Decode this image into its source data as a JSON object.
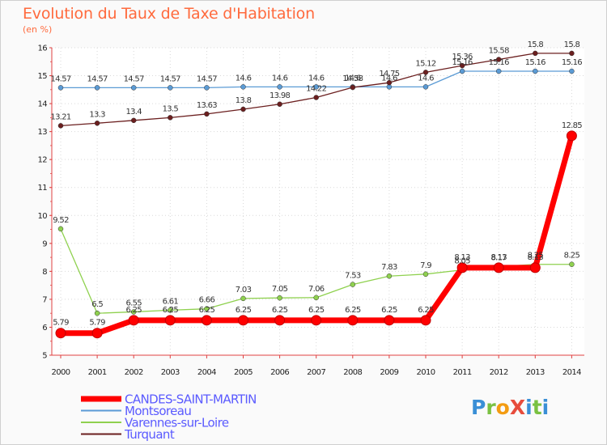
{
  "header": {
    "title": "Evolution du Taux de Taxe d'Habitation",
    "subtitle": "(en %)"
  },
  "logo": {
    "text": "ProXiti",
    "letters": [
      "P",
      "r",
      "o",
      "X",
      "i",
      "t",
      "i"
    ],
    "colors": [
      "#3a8fd6",
      "#7ac142",
      "#f39c12",
      "#e74c3c",
      "#3a8fd6",
      "#7ac142",
      "#3a8fd6"
    ]
  },
  "chart_data": {
    "type": "line",
    "title": "Evolution du Taux de Taxe d'Habitation",
    "ylabel": "(en %)",
    "xlabel": "",
    "x": [
      "2000",
      "2001",
      "2002",
      "2003",
      "2004",
      "2005",
      "2006",
      "2007",
      "2008",
      "2009",
      "2010",
      "2011",
      "2012",
      "2013",
      "2014"
    ],
    "ylim": [
      5,
      16
    ],
    "yticks": [
      "5",
      "6",
      "7",
      "8",
      "9",
      "10",
      "11",
      "12",
      "13",
      "14",
      "15",
      "16"
    ],
    "grid": true,
    "legend_position": "bottom-left",
    "series": [
      {
        "name": "CANDES-SAINT-MARTIN",
        "color": "#ff0000",
        "values": [
          5.79,
          5.79,
          6.25,
          6.25,
          6.25,
          6.25,
          6.25,
          6.25,
          6.25,
          6.25,
          6.25,
          8.13,
          8.13,
          8.13,
          12.85
        ],
        "labels": [
          "5.79",
          "5.79",
          "6.25",
          "6.25",
          "6.25",
          "6.25",
          "6.25",
          "6.25",
          "6.25",
          "6.25",
          "6.25",
          "8.13",
          "8.13",
          "8.13",
          "12.85"
        ]
      },
      {
        "name": "Montsoreau",
        "color": "#5b9bd5",
        "values": [
          14.57,
          14.57,
          14.57,
          14.57,
          14.57,
          14.6,
          14.6,
          14.6,
          14.6,
          14.6,
          14.6,
          15.16,
          15.16,
          15.16,
          15.16
        ],
        "labels": [
          "14.57",
          "14.57",
          "14.57",
          "14.57",
          "14.57",
          "14.6",
          "14.6",
          "14.6",
          "14.6",
          "14.6",
          "14.6",
          "15.16",
          "15.16",
          "15.16",
          "15.16"
        ]
      },
      {
        "name": "Varennes-sur-Loire",
        "color": "#8fd14f",
        "values": [
          9.52,
          6.5,
          6.55,
          6.61,
          6.66,
          7.03,
          7.05,
          7.06,
          7.53,
          7.83,
          7.9,
          8.05,
          8.17,
          8.25,
          8.25
        ],
        "labels": [
          "9.52",
          "6.5",
          "6.55",
          "6.61",
          "6.66",
          "7.03",
          "7.05",
          "7.06",
          "7.53",
          "7.83",
          "7.9",
          "8.05",
          "8.17",
          "8.25",
          "8.25"
        ]
      },
      {
        "name": "Turquant",
        "color": "#6b1f1f",
        "values": [
          13.21,
          13.3,
          13.4,
          13.5,
          13.63,
          13.8,
          13.98,
          14.22,
          14.58,
          14.75,
          15.12,
          15.36,
          15.58,
          15.8,
          15.8
        ],
        "labels": [
          "13.21",
          "13.3",
          "13.4",
          "13.5",
          "13.63",
          "13.8",
          "13.98",
          "14.22",
          "14.58",
          "14.75",
          "15.12",
          "15.36",
          "15.58",
          "15.8",
          "15.8"
        ]
      }
    ]
  }
}
